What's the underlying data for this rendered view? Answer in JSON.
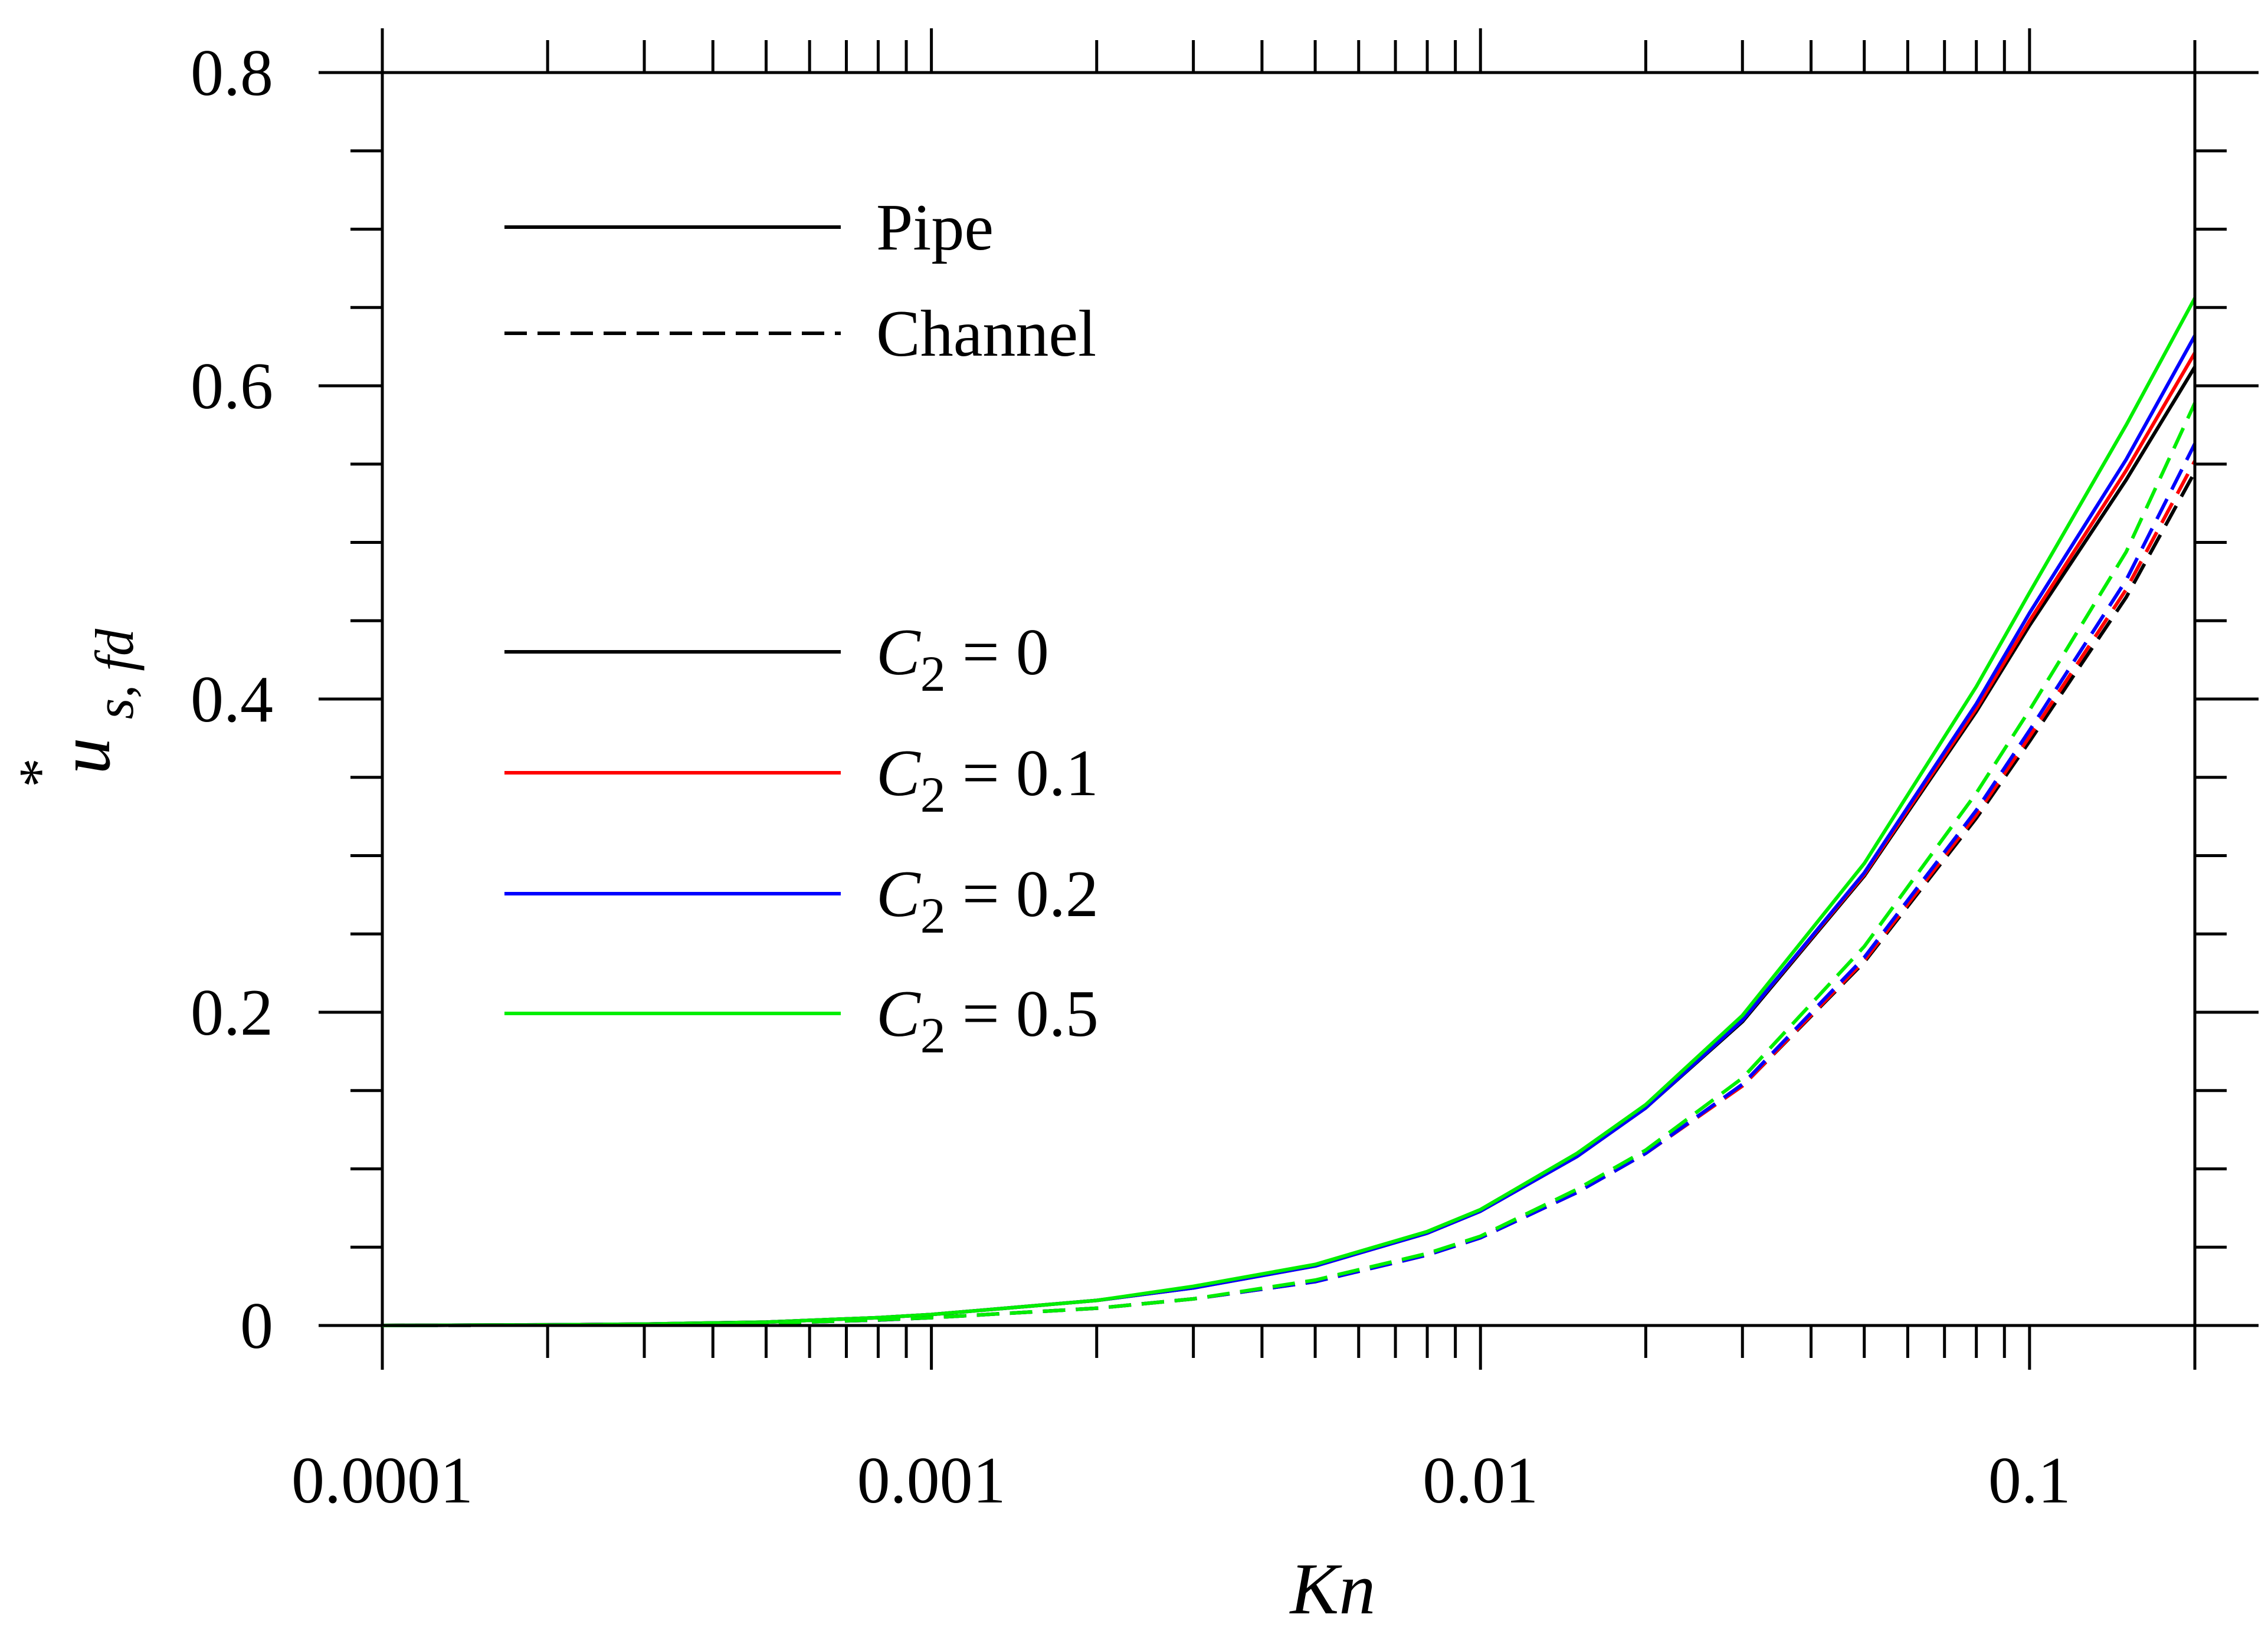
{
  "chart_data": {
    "type": "line",
    "title": "",
    "xlabel": "Kn",
    "ylabel": "u*s, fd",
    "ylabel_parts": {
      "base": "u",
      "sup": "*",
      "sub": "s, fd"
    },
    "xscale": "log",
    "xlim": [
      0.0001,
      0.2
    ],
    "ylim": [
      0,
      0.8
    ],
    "x_ticks": [
      0.0001,
      0.001,
      0.01,
      0.1
    ],
    "x_tick_labels": [
      "0.0001",
      "0.001",
      "0.01",
      "0.1"
    ],
    "y_ticks": [
      0,
      0.2,
      0.4,
      0.6,
      0.8
    ],
    "y_tick_labels": [
      "0",
      "0.2",
      "0.4",
      "0.6",
      "0.8"
    ],
    "grid": false,
    "legend_style": {
      "title": "",
      "entries": [
        {
          "label": "Pipe",
          "color": "#000000",
          "dash": "solid"
        },
        {
          "label": "Channel",
          "color": "#000000",
          "dash": "dashed"
        }
      ]
    },
    "legend_color": {
      "entries": [
        {
          "label_var": "C",
          "label_sub": "2",
          "label_rest": " = 0",
          "color": "#000000"
        },
        {
          "label_var": "C",
          "label_sub": "2",
          "label_rest": " = 0.1",
          "color": "#ff0000"
        },
        {
          "label_var": "C",
          "label_sub": "2",
          "label_rest": " = 0.2",
          "color": "#0000ff"
        },
        {
          "label_var": "C",
          "label_sub": "2",
          "label_rest": " = 0.5",
          "color": "#00ee00"
        }
      ]
    },
    "x": [
      0.0001,
      0.0002,
      0.0003,
      0.0005,
      0.0008,
      0.001,
      0.002,
      0.003,
      0.005,
      0.008,
      0.01,
      0.015,
      0.02,
      0.03,
      0.05,
      0.08,
      0.1,
      0.15,
      0.2
    ],
    "series": [
      {
        "name": "Pipe, C2 = 0",
        "geometry": "Pipe",
        "color": "#000000",
        "dash": "solid",
        "values": [
          0.0,
          0.0004,
          0.0009,
          0.0022,
          0.005,
          0.007,
          0.016,
          0.024,
          0.038,
          0.059,
          0.073,
          0.108,
          0.139,
          0.194,
          0.287,
          0.392,
          0.447,
          0.54,
          0.612
        ]
      },
      {
        "name": "Pipe, C2 = 0.1",
        "geometry": "Pipe",
        "color": "#ff0000",
        "dash": "solid",
        "values": [
          0.0,
          0.0004,
          0.0009,
          0.0022,
          0.005,
          0.007,
          0.016,
          0.024,
          0.038,
          0.059,
          0.073,
          0.108,
          0.139,
          0.195,
          0.288,
          0.394,
          0.45,
          0.546,
          0.621
        ]
      },
      {
        "name": "Pipe, C2 = 0.2",
        "geometry": "Pipe",
        "color": "#0000ff",
        "dash": "solid",
        "values": [
          0.0,
          0.0004,
          0.0009,
          0.0022,
          0.005,
          0.007,
          0.016,
          0.024,
          0.038,
          0.059,
          0.073,
          0.108,
          0.139,
          0.195,
          0.289,
          0.397,
          0.455,
          0.553,
          0.632
        ]
      },
      {
        "name": "Pipe, C2 = 0.5",
        "geometry": "Pipe",
        "color": "#00ee00",
        "dash": "solid",
        "values": [
          0.0,
          0.0004,
          0.0009,
          0.0022,
          0.005,
          0.007,
          0.016,
          0.025,
          0.039,
          0.06,
          0.074,
          0.11,
          0.141,
          0.198,
          0.295,
          0.408,
          0.468,
          0.575,
          0.656
        ]
      },
      {
        "name": "Channel, C2 = 0",
        "geometry": "Channel",
        "color": "#000000",
        "dash": "dashed",
        "values": [
          0.0,
          0.0003,
          0.0006,
          0.0015,
          0.0035,
          0.005,
          0.011,
          0.017,
          0.028,
          0.045,
          0.056,
          0.085,
          0.11,
          0.153,
          0.232,
          0.324,
          0.373,
          0.465,
          0.545
        ]
      },
      {
        "name": "Channel, C2 = 0.1",
        "geometry": "Channel",
        "color": "#ff0000",
        "dash": "dashed",
        "values": [
          0.0,
          0.0003,
          0.0006,
          0.0015,
          0.0035,
          0.005,
          0.011,
          0.017,
          0.028,
          0.045,
          0.056,
          0.085,
          0.11,
          0.153,
          0.233,
          0.326,
          0.376,
          0.47,
          0.552
        ]
      },
      {
        "name": "Channel, C2 = 0.2",
        "geometry": "Channel",
        "color": "#0000ff",
        "dash": "dashed",
        "values": [
          0.0,
          0.0003,
          0.0006,
          0.0015,
          0.0035,
          0.005,
          0.011,
          0.017,
          0.028,
          0.045,
          0.056,
          0.085,
          0.11,
          0.154,
          0.235,
          0.329,
          0.38,
          0.476,
          0.563
        ]
      },
      {
        "name": "Channel, C2 = 0.5",
        "geometry": "Channel",
        "color": "#00ee00",
        "dash": "dashed",
        "values": [
          0.0,
          0.0003,
          0.0006,
          0.0015,
          0.0036,
          0.005,
          0.011,
          0.017,
          0.029,
          0.046,
          0.057,
          0.087,
          0.112,
          0.158,
          0.242,
          0.34,
          0.393,
          0.494,
          0.589
        ]
      }
    ]
  }
}
